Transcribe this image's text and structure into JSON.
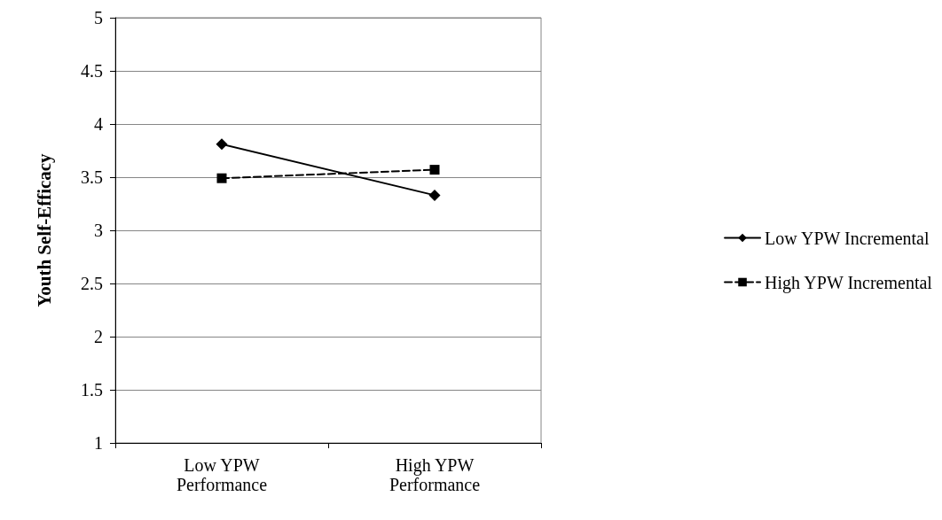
{
  "chart_data": {
    "type": "line",
    "ylabel": "Youth Self-Efficacy",
    "categories": [
      "Low YPW\nPerformance",
      "High YPW\nPerformance"
    ],
    "series": [
      {
        "name": "Low YPW Incremental",
        "color": "#000000",
        "values": [
          3.81,
          3.33
        ],
        "marker": "diamond",
        "line_style": "solid"
      },
      {
        "name": "High YPW Incremental",
        "color": "#000000",
        "values": [
          3.49,
          3.57
        ],
        "marker": "square",
        "line_style": "dashed"
      }
    ],
    "ylim": [
      1,
      5
    ],
    "yticks": [
      1,
      1.5,
      2,
      2.5,
      3,
      3.5,
      4,
      4.5,
      5
    ],
    "grid": "y",
    "legend": "right"
  }
}
